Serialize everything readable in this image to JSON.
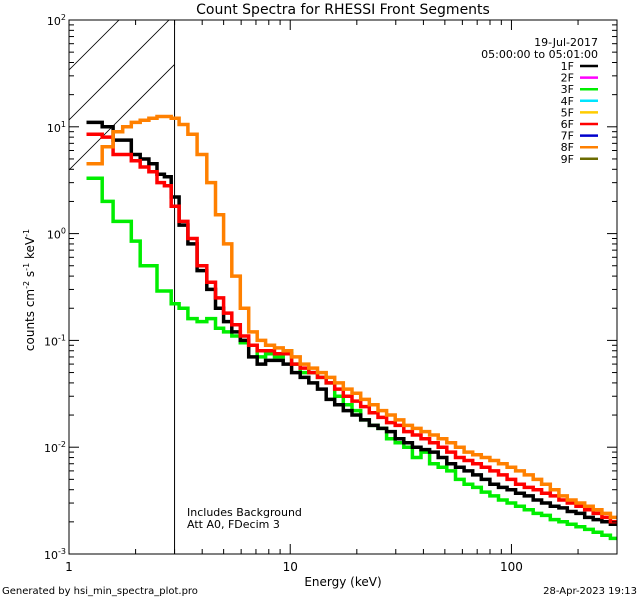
{
  "chart_data": {
    "type": "line",
    "title": "Count Spectra for RHESSI Front Segments",
    "xlabel": "Energy (keV)",
    "ylabel_base": "counts cm",
    "ylabel_exp1": "-2",
    "ylabel_s": " s",
    "ylabel_exp2": "-1",
    "ylabel_kev": " keV",
    "ylabel_exp3": "-1",
    "xscale": "log",
    "yscale": "log",
    "xlim": [
      1,
      300
    ],
    "ylim": [
      0.001,
      100
    ],
    "x_ticks": [
      {
        "value": 1,
        "label": "1"
      },
      {
        "value": 10,
        "label": "10"
      },
      {
        "value": 100,
        "label": "100"
      }
    ],
    "y_ticks": [
      {
        "value": 0.001,
        "base": "10",
        "exp": "-3"
      },
      {
        "value": 0.01,
        "base": "10",
        "exp": "-2"
      },
      {
        "value": 0.1,
        "base": "10",
        "exp": "-1"
      },
      {
        "value": 1,
        "base": "10",
        "exp": "0"
      },
      {
        "value": 10,
        "base": "10",
        "exp": "1"
      },
      {
        "value": 100,
        "base": "10",
        "exp": "2"
      }
    ],
    "hatched_region_max_energy": 3,
    "date": "19-Jul-2017",
    "time_range": "05:00:00 to 05:01:00",
    "legend_position": "top-right",
    "legend": [
      {
        "name": "1F",
        "color": "#000000"
      },
      {
        "name": "2F",
        "color": "#ff00ff"
      },
      {
        "name": "3F",
        "color": "#00ee00"
      },
      {
        "name": "4F",
        "color": "#00e5ff"
      },
      {
        "name": "5F",
        "color": "#ffcc00"
      },
      {
        "name": "6F",
        "color": "#ff0000"
      },
      {
        "name": "7F",
        "color": "#0000cc"
      },
      {
        "name": "8F",
        "color": "#ff8000"
      },
      {
        "name": "9F",
        "color": "#6b6b00"
      }
    ],
    "annotation_line1": "Includes Background",
    "annotation_line2": "Att A0, FDecim 3",
    "series": [
      {
        "name": "3F",
        "color": "#00ee00",
        "width": 3.5,
        "x": [
          1.2,
          1.33,
          1.5,
          1.67,
          1.83,
          2.0,
          2.2,
          2.4,
          2.6,
          2.8,
          3.0,
          3.3,
          3.6,
          4.0,
          4.4,
          4.8,
          5.2,
          5.7,
          6.2,
          6.8,
          7.4,
          8.1,
          8.9,
          9.7,
          10.6,
          11.6,
          12.7,
          13.9,
          15.2,
          16.6,
          18.2,
          19.9,
          21.8,
          23.8,
          26.1,
          28.5,
          31.2,
          34.1,
          37.3,
          40.8,
          44.6,
          48.8,
          53.4,
          58.4,
          63.9,
          69.9,
          76.4,
          83.6,
          91.4,
          100,
          109,
          120,
          131,
          143,
          157,
          171,
          187,
          205,
          224,
          245,
          268,
          293
        ],
        "y": [
          3.3,
          3.3,
          2.0,
          1.3,
          1.3,
          0.85,
          0.5,
          0.5,
          0.29,
          0.29,
          0.22,
          0.2,
          0.16,
          0.15,
          0.16,
          0.13,
          0.12,
          0.11,
          0.095,
          0.09,
          0.07,
          0.075,
          0.07,
          0.08,
          0.06,
          0.05,
          0.05,
          0.045,
          0.04,
          0.03,
          0.025,
          0.022,
          0.018,
          0.016,
          0.015,
          0.012,
          0.011,
          0.01,
          0.008,
          0.009,
          0.007,
          0.0065,
          0.006,
          0.005,
          0.0045,
          0.0042,
          0.0038,
          0.0035,
          0.0032,
          0.003,
          0.0028,
          0.0026,
          0.0024,
          0.0023,
          0.0021,
          0.002,
          0.0019,
          0.0018,
          0.0017,
          0.0016,
          0.0015,
          0.0014
        ]
      },
      {
        "name": "1F",
        "color": "#000000",
        "width": 3.5,
        "x": [
          1.2,
          1.33,
          1.5,
          1.67,
          1.83,
          2.0,
          2.2,
          2.4,
          2.6,
          2.8,
          3.0,
          3.3,
          3.6,
          4.0,
          4.4,
          4.8,
          5.2,
          5.7,
          6.2,
          6.8,
          7.4,
          8.1,
          8.9,
          9.7,
          10.6,
          11.6,
          12.7,
          13.9,
          15.2,
          16.6,
          18.2,
          19.9,
          21.8,
          23.8,
          26.1,
          28.5,
          31.2,
          34.1,
          37.3,
          40.8,
          44.6,
          48.8,
          53.4,
          58.4,
          63.9,
          69.9,
          76.4,
          83.6,
          91.4,
          100,
          109,
          120,
          131,
          143,
          157,
          171,
          187,
          205,
          224,
          245,
          268,
          293
        ],
        "y": [
          11,
          11,
          10,
          7.5,
          7.5,
          5.5,
          5.0,
          4.5,
          3.6,
          3.4,
          2.2,
          1.2,
          0.8,
          0.45,
          0.3,
          0.2,
          0.15,
          0.12,
          0.1,
          0.07,
          0.06,
          0.065,
          0.065,
          0.06,
          0.05,
          0.045,
          0.04,
          0.035,
          0.028,
          0.025,
          0.022,
          0.02,
          0.018,
          0.016,
          0.015,
          0.014,
          0.012,
          0.011,
          0.01,
          0.0095,
          0.009,
          0.008,
          0.007,
          0.0065,
          0.006,
          0.0055,
          0.005,
          0.0045,
          0.0042,
          0.004,
          0.0037,
          0.0035,
          0.0032,
          0.003,
          0.0028,
          0.0027,
          0.0025,
          0.0024,
          0.0022,
          0.0021,
          0.002,
          0.0019
        ]
      },
      {
        "name": "6F",
        "color": "#ff0000",
        "width": 3.5,
        "x": [
          1.2,
          1.33,
          1.5,
          1.67,
          1.83,
          2.0,
          2.2,
          2.4,
          2.6,
          2.8,
          3.0,
          3.3,
          3.6,
          4.0,
          4.4,
          4.8,
          5.2,
          5.7,
          6.2,
          6.8,
          7.4,
          8.1,
          8.9,
          9.7,
          10.6,
          11.6,
          12.7,
          13.9,
          15.2,
          16.6,
          18.2,
          19.9,
          21.8,
          23.8,
          26.1,
          28.5,
          31.2,
          34.1,
          37.3,
          40.8,
          44.6,
          48.8,
          53.4,
          58.4,
          63.9,
          69.9,
          76.4,
          83.6,
          91.4,
          100,
          109,
          120,
          131,
          143,
          157,
          171,
          187,
          205,
          224,
          245,
          268,
          293
        ],
        "y": [
          8.5,
          8.5,
          8.0,
          5.5,
          5.5,
          4.8,
          4.2,
          3.8,
          3.0,
          2.8,
          1.8,
          1.3,
          0.9,
          0.5,
          0.35,
          0.25,
          0.18,
          0.14,
          0.11,
          0.09,
          0.08,
          0.08,
          0.075,
          0.075,
          0.06,
          0.055,
          0.05,
          0.045,
          0.04,
          0.035,
          0.03,
          0.027,
          0.024,
          0.021,
          0.019,
          0.017,
          0.016,
          0.014,
          0.013,
          0.012,
          0.011,
          0.01,
          0.009,
          0.008,
          0.0075,
          0.007,
          0.0065,
          0.006,
          0.0055,
          0.005,
          0.0045,
          0.0042,
          0.004,
          0.0037,
          0.0035,
          0.0032,
          0.003,
          0.0028,
          0.0026,
          0.0024,
          0.0022,
          0.002
        ]
      },
      {
        "name": "8F",
        "color": "#ff8000",
        "width": 3.5,
        "x": [
          1.2,
          1.33,
          1.5,
          1.67,
          1.83,
          2.0,
          2.2,
          2.4,
          2.6,
          2.8,
          3.0,
          3.3,
          3.6,
          4.0,
          4.4,
          4.8,
          5.2,
          5.7,
          6.2,
          6.8,
          7.4,
          8.1,
          8.9,
          9.7,
          10.6,
          11.6,
          12.7,
          13.9,
          15.2,
          16.6,
          18.2,
          19.9,
          21.8,
          23.8,
          26.1,
          28.5,
          31.2,
          34.1,
          37.3,
          40.8,
          44.6,
          48.8,
          53.4,
          58.4,
          63.9,
          69.9,
          76.4,
          83.6,
          91.4,
          100,
          109,
          120,
          131,
          143,
          157,
          171,
          187,
          205,
          224,
          245,
          268,
          293
        ],
        "y": [
          4.5,
          4.5,
          6.5,
          9.0,
          10.0,
          11.0,
          11.5,
          12.0,
          12.5,
          12.5,
          12.0,
          10.5,
          8.5,
          5.5,
          3.0,
          1.5,
          0.8,
          0.4,
          0.2,
          0.12,
          0.1,
          0.09,
          0.085,
          0.08,
          0.07,
          0.06,
          0.055,
          0.05,
          0.045,
          0.04,
          0.035,
          0.032,
          0.028,
          0.025,
          0.022,
          0.02,
          0.018,
          0.016,
          0.015,
          0.014,
          0.013,
          0.012,
          0.011,
          0.01,
          0.009,
          0.0085,
          0.008,
          0.0075,
          0.007,
          0.0065,
          0.006,
          0.0055,
          0.005,
          0.0045,
          0.004,
          0.0035,
          0.0032,
          0.003,
          0.0028,
          0.0026,
          0.0024,
          0.0022
        ]
      }
    ]
  },
  "footer": {
    "left": "Generated by hsi_min_spectra_plot.pro",
    "right": "28-Apr-2023 19:13"
  }
}
